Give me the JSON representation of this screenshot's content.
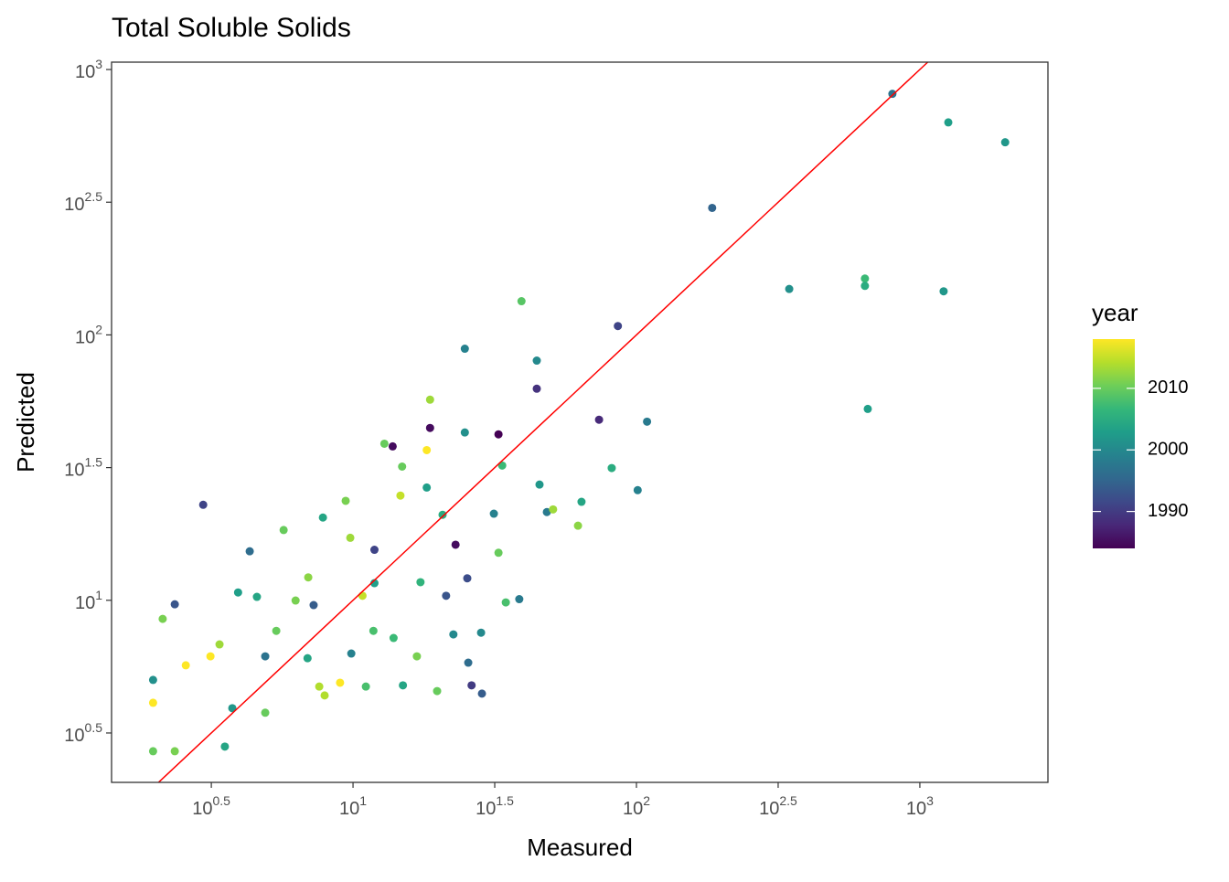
{
  "chart_data": {
    "type": "scatter",
    "title": "Total Soluble Solids",
    "x_label": "Measured",
    "y_label": "Predicted",
    "xlim": [
      1.406,
      2831
    ],
    "ylim": [
      2.06,
      1066
    ],
    "log_x": true,
    "log_y": true,
    "grid": false,
    "xticks": [
      {
        "value": 3.1623,
        "label": "10^0.5"
      },
      {
        "value": 10,
        "label": "10^1"
      },
      {
        "value": 31.623,
        "label": "10^1.5"
      },
      {
        "value": 100,
        "label": "10^2"
      },
      {
        "value": 316.23,
        "label": "10^2.5"
      },
      {
        "value": 1000,
        "label": "10^3"
      }
    ],
    "yticks": [
      {
        "value": 3.1623,
        "label": "10^0.5"
      },
      {
        "value": 10,
        "label": "10^1"
      },
      {
        "value": 31.623,
        "label": "10^1.5"
      },
      {
        "value": 100,
        "label": "10^2"
      },
      {
        "value": 316.23,
        "label": "10^2.5"
      },
      {
        "value": 1000,
        "label": "10^3"
      }
    ],
    "reference_line": {
      "slope": 1,
      "intercept": 0,
      "color": "#ff0000"
    },
    "colorbar": {
      "title": "year",
      "limits": [
        1984,
        2018
      ],
      "ticks": [
        1990,
        2000,
        2010
      ],
      "colors": [
        "#440154",
        "#482878",
        "#3e4989",
        "#31688e",
        "#26828e",
        "#1f9e89",
        "#35b779",
        "#6ece58",
        "#b5de2b",
        "#fde725"
      ]
    },
    "x": [
      800,
      1260,
      2000,
      185,
      346,
      640,
      640,
      1213,
      655,
      86,
      39.3,
      24.8,
      44.5,
      44.5,
      18.7,
      18.7,
      32.6,
      73.8,
      109,
      101,
      81.8,
      64,
      62.2,
      48.3,
      33.6,
      24.8,
      2.96,
      2.35,
      1.97,
      1.97,
      1.97,
      2.35,
      3.53,
      2.57,
      3.14,
      3.75,
      4.9,
      4.58,
      4.9,
      7.6,
      5.69,
      7.83,
      9.78,
      11.9,
      14.7,
      12.9,
      13.8,
      18.2,
      20.7,
      21.3,
      19.8,
      25.5,
      26.2,
      28.5,
      34.6,
      38.6,
      28.3,
      22.6,
      15.0,
      11.1,
      16.8,
      13.9,
      9.86,
      11.8,
      7.94,
      9.0,
      6.27,
      6.95,
      7.26,
      10.8,
      11.9,
      17.3,
      25.3,
      32.6,
      23.0,
      31.4,
      50.8,
      45.5,
      4.32,
      3.93,
      3.38,
      2.13,
      5.36,
      6.91,
      18.2,
      9.42,
      14.9
    ],
    "values": [
      810,
      632,
      532,
      301,
      149,
      163,
      153,
      146,
      52.6,
      108,
      134,
      88.7,
      80,
      62.7,
      57,
      44.6,
      42.2,
      47.9,
      47.1,
      26,
      31.5,
      23.5,
      19.1,
      21.5,
      32.2,
      42.9,
      22.9,
      9.66,
      5.01,
      2.7,
      4.11,
      2.7,
      2.81,
      5.69,
      6.15,
      3.92,
      3.77,
      10.3,
      6.15,
      4.73,
      18.4,
      20.5,
      17.2,
      15.5,
      24.8,
      38.9,
      38.0,
      26.6,
      21.0,
      10.4,
      4.55,
      5.82,
      4.78,
      4.45,
      9.82,
      10.1,
      7.55,
      7.44,
      4.78,
      4.73,
      6.15,
      7.21,
      6.3,
      7.67,
      4.38,
      4.89,
      9.98,
      12.2,
      9.59,
      10.4,
      11.6,
      11.7,
      12.1,
      15.1,
      16.2,
      21.2,
      22.0,
      27.3,
      15.3,
      10.7,
      6.82,
      8.51,
      7.67,
      6.05,
      36.8,
      23.7,
      31.9
    ],
    "year": [
      1997,
      2003,
      2002,
      1995,
      2001,
      2007,
      2005,
      2002,
      2003,
      1991,
      2009,
      1999,
      2000,
      1989,
      2013,
      1985,
      1984,
      1988,
      1998,
      1999,
      2005,
      2004,
      2012,
      1998,
      2007,
      2001,
      1991,
      1993,
      2001,
      2010,
      2018,
      2011,
      2004,
      2018,
      2018,
      2002,
      2010,
      2004,
      1997,
      2014,
      2010,
      2004,
      2013,
      1991,
      2015,
      2010,
      1985,
      2003,
      2005,
      1993,
      2010,
      1996,
      1990,
      1994,
      2008,
      1998,
      2000,
      2000,
      2004,
      2008,
      2011,
      2007,
      1999,
      2008,
      2014,
      2018,
      2011,
      2012,
      1994,
      2015,
      2003,
      2006,
      1992,
      2010,
      1985,
      1999,
      2013,
      2002,
      1996,
      2003,
      2013,
      2011,
      2010,
      2004,
      2018,
      2011,
      2010
    ]
  }
}
